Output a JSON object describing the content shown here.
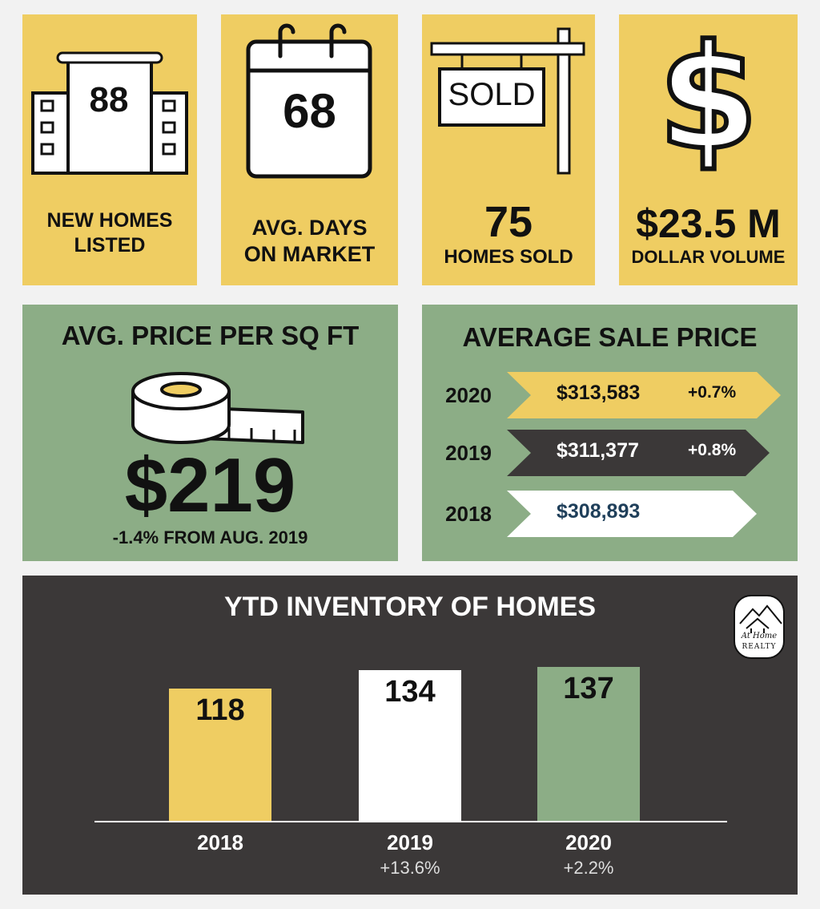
{
  "stats": {
    "new_homes": {
      "value": "88",
      "label": "NEW HOMES LISTED"
    },
    "avg_days": {
      "value": "68",
      "label": "AVG. DAYS ON MARKET"
    },
    "homes_sold": {
      "sign": "SOLD",
      "value": "75",
      "label": "HOMES SOLD"
    },
    "dollar_volume": {
      "value": "$23.5 M",
      "label": "DOLLAR VOLUME"
    }
  },
  "price_sqft": {
    "title": "AVG. PRICE PER SQ FT",
    "value": "$219",
    "change": "-1.4% FROM AUG. 2019"
  },
  "avg_sale": {
    "title": "AVERAGE SALE PRICE",
    "rows": [
      {
        "year": "2020",
        "price": "$313,583",
        "change": "+0.7%",
        "fill": "#efcd62",
        "text_color": "#111111"
      },
      {
        "year": "2019",
        "price": "$311,377",
        "change": "+0.8%",
        "fill": "#3b3838",
        "text_color": "#ffffff"
      },
      {
        "year": "2018",
        "price": "$308,893",
        "change": "",
        "fill": "#ffffff",
        "text_color": "#1f3f5a"
      }
    ]
  },
  "logo": {
    "line1": "At Home",
    "line2": "REALTY"
  },
  "chart_data": {
    "type": "bar",
    "title": "YTD INVENTORY OF HOMES",
    "categories": [
      "2018",
      "2019",
      "2020"
    ],
    "values": [
      118,
      134,
      137
    ],
    "value_labels": [
      "118",
      "134",
      "137"
    ],
    "changes": [
      "",
      "+13.6%",
      "+2.2%"
    ],
    "colors": [
      "#efcd62",
      "#ffffff",
      "#8cad86"
    ],
    "ylim": [
      0,
      137
    ],
    "grid": false,
    "legend": "none"
  }
}
